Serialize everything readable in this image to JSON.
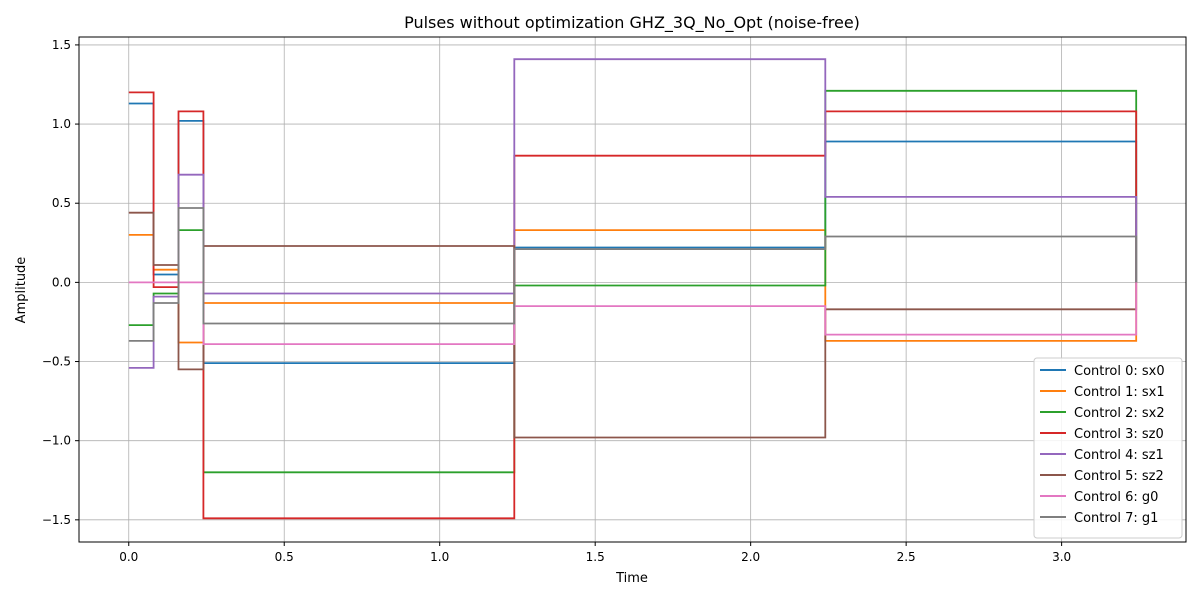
{
  "chart_data": {
    "type": "line",
    "title": "Pulses without optimization GHZ_3Q_No_Opt (noise-free)",
    "xlabel": "Time",
    "ylabel": "Amplitude",
    "xlim": [
      -0.16,
      3.4
    ],
    "ylim": [
      -1.64,
      1.55
    ],
    "xticks": [
      0.0,
      0.5,
      1.0,
      1.5,
      2.0,
      2.5,
      3.0
    ],
    "xtick_labels": [
      "0.0",
      "0.5",
      "1.0",
      "1.5",
      "2.0",
      "2.5",
      "3.0"
    ],
    "yticks": [
      -1.5,
      -1.0,
      -0.5,
      0.0,
      0.5,
      1.0,
      1.5
    ],
    "ytick_labels": [
      "−1.5",
      "−1.0",
      "−0.5",
      "0.0",
      "0.5",
      "1.0",
      "1.5"
    ],
    "grid": true,
    "legend_position": "lower-right",
    "step_edges": [
      0.0,
      0.08,
      0.16,
      0.24,
      1.24,
      2.24,
      3.24
    ],
    "series": [
      {
        "name": "Control 0: sx0",
        "color": "#1f77b4",
        "values": [
          1.13,
          0.05,
          1.02,
          -0.51,
          0.22,
          0.89
        ]
      },
      {
        "name": "Control 1: sx1",
        "color": "#ff7f0e",
        "values": [
          0.3,
          0.08,
          -0.38,
          -0.13,
          0.33,
          -0.37
        ]
      },
      {
        "name": "Control 2: sx2",
        "color": "#2ca02c",
        "values": [
          -0.27,
          -0.07,
          0.33,
          -1.2,
          -0.02,
          1.21
        ]
      },
      {
        "name": "Control 3: sz0",
        "color": "#d62728",
        "values": [
          1.2,
          -0.03,
          1.08,
          -1.49,
          0.8,
          1.08
        ]
      },
      {
        "name": "Control 4: sz1",
        "color": "#9467bd",
        "values": [
          -0.54,
          -0.09,
          0.68,
          -0.07,
          1.41,
          0.54
        ]
      },
      {
        "name": "Control 5: sz2",
        "color": "#8c564b",
        "values": [
          0.44,
          0.11,
          -0.55,
          0.23,
          -0.98,
          -0.17
        ]
      },
      {
        "name": "Control 6: g0",
        "color": "#e377c2",
        "values": [
          0.0,
          0.0,
          0.0,
          -0.39,
          -0.15,
          -0.33
        ]
      },
      {
        "name": "Control 7: g1",
        "color": "#7f7f7f",
        "values": [
          -0.37,
          -0.13,
          0.47,
          -0.26,
          0.21,
          0.29
        ]
      }
    ]
  }
}
